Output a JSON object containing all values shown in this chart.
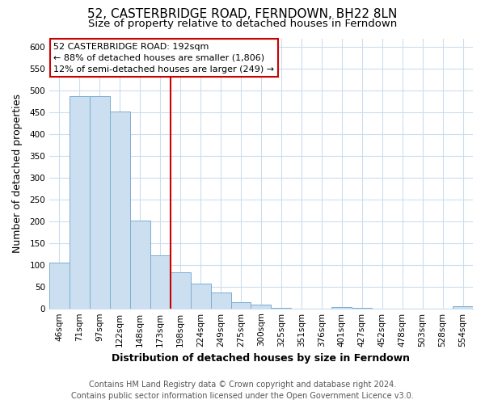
{
  "title": "52, CASTERBRIDGE ROAD, FERNDOWN, BH22 8LN",
  "subtitle": "Size of property relative to detached houses in Ferndown",
  "xlabel": "Distribution of detached houses by size in Ferndown",
  "ylabel": "Number of detached properties",
  "bar_labels": [
    "46sqm",
    "71sqm",
    "97sqm",
    "122sqm",
    "148sqm",
    "173sqm",
    "198sqm",
    "224sqm",
    "249sqm",
    "275sqm",
    "300sqm",
    "325sqm",
    "351sqm",
    "376sqm",
    "401sqm",
    "427sqm",
    "452sqm",
    "478sqm",
    "503sqm",
    "528sqm",
    "554sqm"
  ],
  "bar_values": [
    105,
    488,
    488,
    453,
    202,
    122,
    83,
    57,
    36,
    15,
    9,
    1,
    0,
    0,
    3,
    1,
    0,
    0,
    0,
    0,
    5
  ],
  "bar_color": "#ccdff0",
  "bar_edge_color": "#7aaed0",
  "highlight_line_color": "#cc0000",
  "annotation_title": "52 CASTERBRIDGE ROAD: 192sqm",
  "annotation_line1": "← 88% of detached houses are smaller (1,806)",
  "annotation_line2": "12% of semi-detached houses are larger (249) →",
  "annotation_box_facecolor": "#ffffff",
  "annotation_box_edgecolor": "#cc0000",
  "ylim": [
    0,
    620
  ],
  "yticks": [
    0,
    50,
    100,
    150,
    200,
    250,
    300,
    350,
    400,
    450,
    500,
    550,
    600
  ],
  "footer_line1": "Contains HM Land Registry data © Crown copyright and database right 2024.",
  "footer_line2": "Contains public sector information licensed under the Open Government Licence v3.0.",
  "background_color": "#ffffff",
  "plot_background_color": "#ffffff",
  "grid_color": "#ccddee",
  "title_fontsize": 11,
  "subtitle_fontsize": 9.5,
  "axis_label_fontsize": 9,
  "tick_fontsize": 7.5,
  "annotation_fontsize": 8,
  "footer_fontsize": 7
}
